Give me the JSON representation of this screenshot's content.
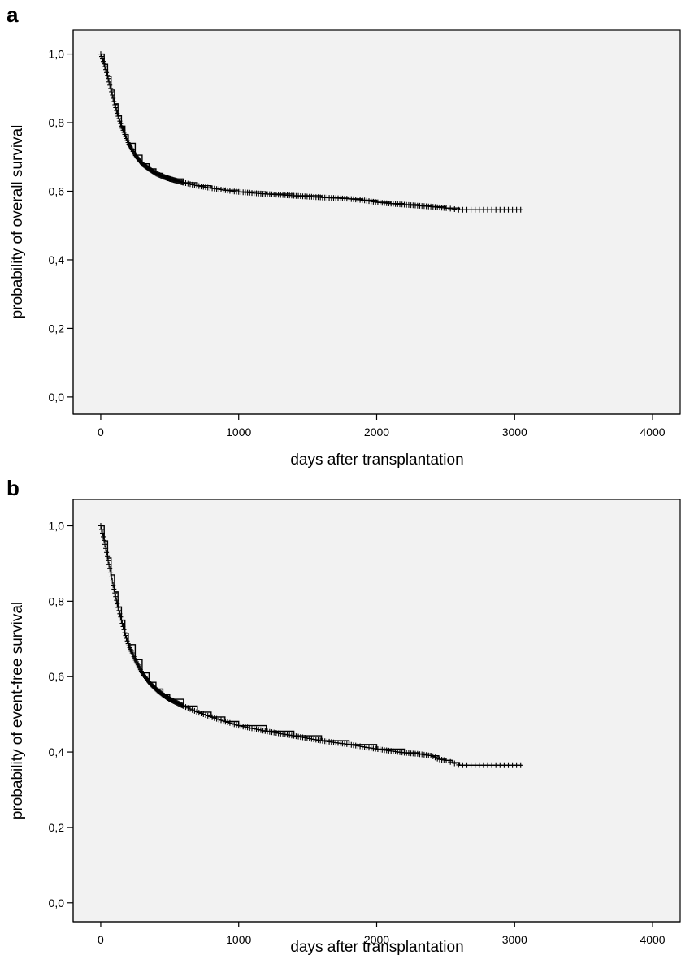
{
  "chart_data": [
    {
      "type": "line",
      "panel": "a",
      "title": "",
      "xlabel": "days after transplantation",
      "ylabel": "probability of overall survival",
      "xlim": [
        -200,
        4200
      ],
      "ylim": [
        -0.05,
        1.07
      ],
      "x_ticks": [
        0,
        1000,
        2000,
        3000,
        4000
      ],
      "x_tick_labels": [
        "0",
        "1000",
        "2000",
        "3000",
        "4000"
      ],
      "y_ticks": [
        0.0,
        0.2,
        0.4,
        0.6,
        0.8,
        1.0
      ],
      "y_tick_labels": [
        "0,0",
        "0,2",
        "0,4",
        "0,6",
        "0,8",
        "1,0"
      ],
      "grid": false,
      "series": [
        {
          "style": "step with censor marks",
          "x": [
            0,
            25,
            50,
            75,
            100,
            125,
            150,
            175,
            200,
            250,
            300,
            350,
            400,
            450,
            500,
            600,
            700,
            800,
            900,
            1000,
            1200,
            1400,
            1600,
            1800,
            1900,
            2000,
            2100,
            2200,
            2300,
            2400,
            2500,
            2600,
            2800,
            3050
          ],
          "y": [
            1.0,
            0.97,
            0.935,
            0.895,
            0.855,
            0.82,
            0.79,
            0.765,
            0.74,
            0.705,
            0.68,
            0.665,
            0.652,
            0.643,
            0.636,
            0.625,
            0.616,
            0.609,
            0.603,
            0.598,
            0.592,
            0.587,
            0.582,
            0.578,
            0.574,
            0.568,
            0.564,
            0.561,
            0.558,
            0.555,
            0.551,
            0.546,
            0.546,
            0.546
          ]
        }
      ]
    },
    {
      "type": "line",
      "panel": "b",
      "title": "",
      "xlabel": "days after transplantation",
      "ylabel": "probability of event-free survival",
      "xlim": [
        -200,
        4200
      ],
      "ylim": [
        -0.05,
        1.07
      ],
      "x_ticks": [
        0,
        1000,
        2000,
        3000,
        4000
      ],
      "x_tick_labels": [
        "0",
        "1000",
        "2000",
        "3000",
        "4000"
      ],
      "y_ticks": [
        0.0,
        0.2,
        0.4,
        0.6,
        0.8,
        1.0
      ],
      "y_tick_labels": [
        "0,0",
        "0,2",
        "0,4",
        "0,6",
        "0,8",
        "1,0"
      ],
      "grid": false,
      "series": [
        {
          "style": "step with censor marks",
          "x": [
            0,
            25,
            50,
            75,
            100,
            125,
            150,
            175,
            200,
            250,
            300,
            350,
            400,
            450,
            500,
            600,
            700,
            800,
            900,
            1000,
            1200,
            1400,
            1600,
            1800,
            2000,
            2200,
            2300,
            2400,
            2450,
            2500,
            2550,
            2600,
            2800,
            3050
          ],
          "y": [
            1.0,
            0.96,
            0.915,
            0.87,
            0.825,
            0.785,
            0.75,
            0.715,
            0.685,
            0.645,
            0.61,
            0.585,
            0.567,
            0.552,
            0.54,
            0.522,
            0.506,
            0.493,
            0.481,
            0.47,
            0.455,
            0.443,
            0.43,
            0.42,
            0.408,
            0.398,
            0.395,
            0.39,
            0.381,
            0.378,
            0.372,
            0.365,
            0.365,
            0.365
          ]
        }
      ]
    }
  ],
  "panels": [
    {
      "letter": "a"
    },
    {
      "letter": "b"
    }
  ]
}
